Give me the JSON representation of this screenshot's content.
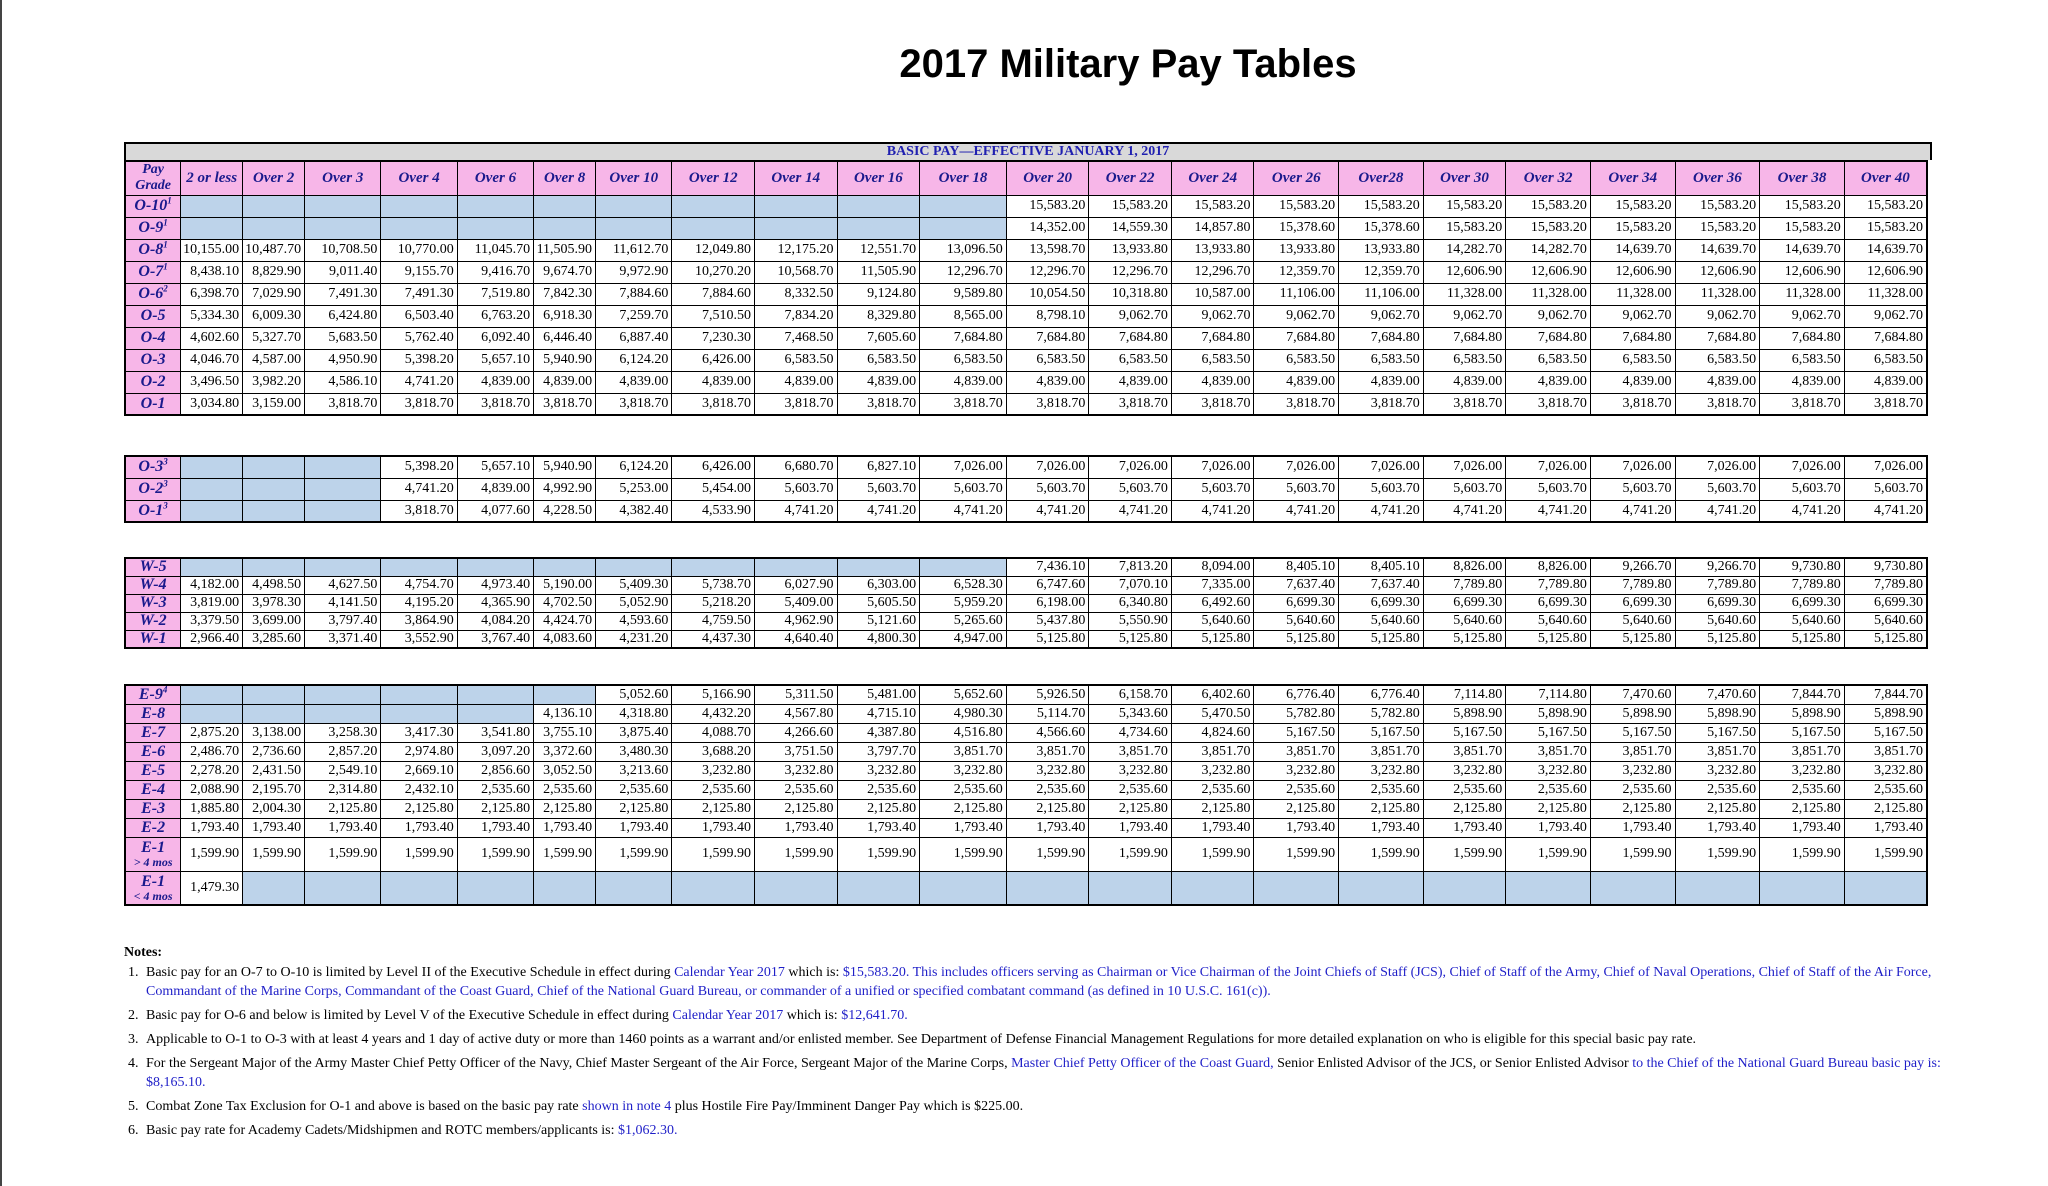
{
  "title": "2017 Military Pay Tables",
  "banner": "BASIC PAY—EFFECTIVE JANUARY 1, 2017",
  "headers": [
    "Pay Grade",
    "2 or less",
    "Over 2",
    "Over 3",
    "Over 4",
    "Over 6",
    "Over 8",
    "Over 10",
    "Over 12",
    "Over 14",
    "Over 16",
    "Over 18",
    "Over 20",
    "Over 22",
    "Over 24",
    "Over 26",
    "Over28",
    "Over 30",
    "Over 32",
    "Over 34",
    "Over 36",
    "Over 38",
    "Over 40"
  ],
  "colors": {
    "grade_fill": "#f7b6e8",
    "blank_fill": "#bdd3ea",
    "link": "#1f1fc8"
  },
  "commissioned": [
    {
      "grade": "O-10",
      "sup": "1",
      "values": [
        "",
        "",
        "",
        "",
        "",
        "",
        "",
        "",
        "",
        "",
        "",
        "15,583.20",
        "15,583.20",
        "15,583.20",
        "15,583.20",
        "15,583.20",
        "15,583.20",
        "15,583.20",
        "15,583.20",
        "15,583.20",
        "15,583.20",
        "15,583.20"
      ]
    },
    {
      "grade": "O-9",
      "sup": "1",
      "values": [
        "",
        "",
        "",
        "",
        "",
        "",
        "",
        "",
        "",
        "",
        "",
        "14,352.00",
        "14,559.30",
        "14,857.80",
        "15,378.60",
        "15,378.60",
        "15,583.20",
        "15,583.20",
        "15,583.20",
        "15,583.20",
        "15,583.20",
        "15,583.20"
      ]
    },
    {
      "grade": "O-8",
      "sup": "1",
      "values": [
        "10,155.00",
        "10,487.70",
        "10,708.50",
        "10,770.00",
        "11,045.70",
        "11,505.90",
        "11,612.70",
        "12,049.80",
        "12,175.20",
        "12,551.70",
        "13,096.50",
        "13,598.70",
        "13,933.80",
        "13,933.80",
        "13,933.80",
        "13,933.80",
        "14,282.70",
        "14,282.70",
        "14,639.70",
        "14,639.70",
        "14,639.70",
        "14,639.70"
      ]
    },
    {
      "grade": "O-7",
      "sup": "1",
      "values": [
        "8,438.10",
        "8,829.90",
        "9,011.40",
        "9,155.70",
        "9,416.70",
        "9,674.70",
        "9,972.90",
        "10,270.20",
        "10,568.70",
        "11,505.90",
        "12,296.70",
        "12,296.70",
        "12,296.70",
        "12,296.70",
        "12,359.70",
        "12,359.70",
        "12,606.90",
        "12,606.90",
        "12,606.90",
        "12,606.90",
        "12,606.90",
        "12,606.90"
      ]
    },
    {
      "grade": "O-6",
      "sup": "2",
      "values": [
        "6,398.70",
        "7,029.90",
        "7,491.30",
        "7,491.30",
        "7,519.80",
        "7,842.30",
        "7,884.60",
        "7,884.60",
        "8,332.50",
        "9,124.80",
        "9,589.80",
        "10,054.50",
        "10,318.80",
        "10,587.00",
        "11,106.00",
        "11,106.00",
        "11,328.00",
        "11,328.00",
        "11,328.00",
        "11,328.00",
        "11,328.00",
        "11,328.00"
      ]
    },
    {
      "grade": "O-5",
      "sup": "",
      "values": [
        "5,334.30",
        "6,009.30",
        "6,424.80",
        "6,503.40",
        "6,763.20",
        "6,918.30",
        "7,259.70",
        "7,510.50",
        "7,834.20",
        "8,329.80",
        "8,565.00",
        "8,798.10",
        "9,062.70",
        "9,062.70",
        "9,062.70",
        "9,062.70",
        "9,062.70",
        "9,062.70",
        "9,062.70",
        "9,062.70",
        "9,062.70",
        "9,062.70"
      ]
    },
    {
      "grade": "O-4",
      "sup": "",
      "values": [
        "4,602.60",
        "5,327.70",
        "5,683.50",
        "5,762.40",
        "6,092.40",
        "6,446.40",
        "6,887.40",
        "7,230.30",
        "7,468.50",
        "7,605.60",
        "7,684.80",
        "7,684.80",
        "7,684.80",
        "7,684.80",
        "7,684.80",
        "7,684.80",
        "7,684.80",
        "7,684.80",
        "7,684.80",
        "7,684.80",
        "7,684.80",
        "7,684.80"
      ]
    },
    {
      "grade": "O-3",
      "sup": "",
      "values": [
        "4,046.70",
        "4,587.00",
        "4,950.90",
        "5,398.20",
        "5,657.10",
        "5,940.90",
        "6,124.20",
        "6,426.00",
        "6,583.50",
        "6,583.50",
        "6,583.50",
        "6,583.50",
        "6,583.50",
        "6,583.50",
        "6,583.50",
        "6,583.50",
        "6,583.50",
        "6,583.50",
        "6,583.50",
        "6,583.50",
        "6,583.50",
        "6,583.50"
      ]
    },
    {
      "grade": "O-2",
      "sup": "",
      "values": [
        "3,496.50",
        "3,982.20",
        "4,586.10",
        "4,741.20",
        "4,839.00",
        "4,839.00",
        "4,839.00",
        "4,839.00",
        "4,839.00",
        "4,839.00",
        "4,839.00",
        "4,839.00",
        "4,839.00",
        "4,839.00",
        "4,839.00",
        "4,839.00",
        "4,839.00",
        "4,839.00",
        "4,839.00",
        "4,839.00",
        "4,839.00",
        "4,839.00"
      ]
    },
    {
      "grade": "O-1",
      "sup": "",
      "values": [
        "3,034.80",
        "3,159.00",
        "3,818.70",
        "3,818.70",
        "3,818.70",
        "3,818.70",
        "3,818.70",
        "3,818.70",
        "3,818.70",
        "3,818.70",
        "3,818.70",
        "3,818.70",
        "3,818.70",
        "3,818.70",
        "3,818.70",
        "3,818.70",
        "3,818.70",
        "3,818.70",
        "3,818.70",
        "3,818.70",
        "3,818.70",
        "3,818.70"
      ]
    }
  ],
  "prior_enlisted": [
    {
      "grade": "O-3",
      "sup": "3",
      "values": [
        "",
        "",
        "",
        "5,398.20",
        "5,657.10",
        "5,940.90",
        "6,124.20",
        "6,426.00",
        "6,680.70",
        "6,827.10",
        "7,026.00",
        "7,026.00",
        "7,026.00",
        "7,026.00",
        "7,026.00",
        "7,026.00",
        "7,026.00",
        "7,026.00",
        "7,026.00",
        "7,026.00",
        "7,026.00",
        "7,026.00"
      ]
    },
    {
      "grade": "O-2",
      "sup": "3",
      "values": [
        "",
        "",
        "",
        "4,741.20",
        "4,839.00",
        "4,992.90",
        "5,253.00",
        "5,454.00",
        "5,603.70",
        "5,603.70",
        "5,603.70",
        "5,603.70",
        "5,603.70",
        "5,603.70",
        "5,603.70",
        "5,603.70",
        "5,603.70",
        "5,603.70",
        "5,603.70",
        "5,603.70",
        "5,603.70",
        "5,603.70"
      ]
    },
    {
      "grade": "O-1",
      "sup": "3",
      "values": [
        "",
        "",
        "",
        "3,818.70",
        "4,077.60",
        "4,228.50",
        "4,382.40",
        "4,533.90",
        "4,741.20",
        "4,741.20",
        "4,741.20",
        "4,741.20",
        "4,741.20",
        "4,741.20",
        "4,741.20",
        "4,741.20",
        "4,741.20",
        "4,741.20",
        "4,741.20",
        "4,741.20",
        "4,741.20",
        "4,741.20"
      ]
    }
  ],
  "warrant": [
    {
      "grade": "W-5",
      "sup": "",
      "values": [
        "",
        "",
        "",
        "",
        "",
        "",
        "",
        "",
        "",
        "",
        "",
        "7,436.10",
        "7,813.20",
        "8,094.00",
        "8,405.10",
        "8,405.10",
        "8,826.00",
        "8,826.00",
        "9,266.70",
        "9,266.70",
        "9,730.80",
        "9,730.80"
      ]
    },
    {
      "grade": "W-4",
      "sup": "",
      "values": [
        "4,182.00",
        "4,498.50",
        "4,627.50",
        "4,754.70",
        "4,973.40",
        "5,190.00",
        "5,409.30",
        "5,738.70",
        "6,027.90",
        "6,303.00",
        "6,528.30",
        "6,747.60",
        "7,070.10",
        "7,335.00",
        "7,637.40",
        "7,637.40",
        "7,789.80",
        "7,789.80",
        "7,789.80",
        "7,789.80",
        "7,789.80",
        "7,789.80"
      ]
    },
    {
      "grade": "W-3",
      "sup": "",
      "values": [
        "3,819.00",
        "3,978.30",
        "4,141.50",
        "4,195.20",
        "4,365.90",
        "4,702.50",
        "5,052.90",
        "5,218.20",
        "5,409.00",
        "5,605.50",
        "5,959.20",
        "6,198.00",
        "6,340.80",
        "6,492.60",
        "6,699.30",
        "6,699.30",
        "6,699.30",
        "6,699.30",
        "6,699.30",
        "6,699.30",
        "6,699.30",
        "6,699.30"
      ]
    },
    {
      "grade": "W-2",
      "sup": "",
      "values": [
        "3,379.50",
        "3,699.00",
        "3,797.40",
        "3,864.90",
        "4,084.20",
        "4,424.70",
        "4,593.60",
        "4,759.50",
        "4,962.90",
        "5,121.60",
        "5,265.60",
        "5,437.80",
        "5,550.90",
        "5,640.60",
        "5,640.60",
        "5,640.60",
        "5,640.60",
        "5,640.60",
        "5,640.60",
        "5,640.60",
        "5,640.60",
        "5,640.60"
      ]
    },
    {
      "grade": "W-1",
      "sup": "",
      "values": [
        "2,966.40",
        "3,285.60",
        "3,371.40",
        "3,552.90",
        "3,767.40",
        "4,083.60",
        "4,231.20",
        "4,437.30",
        "4,640.40",
        "4,800.30",
        "4,947.00",
        "5,125.80",
        "5,125.80",
        "5,125.80",
        "5,125.80",
        "5,125.80",
        "5,125.80",
        "5,125.80",
        "5,125.80",
        "5,125.80",
        "5,125.80",
        "5,125.80"
      ]
    }
  ],
  "enlisted": [
    {
      "grade": "E-9",
      "sup": "4",
      "values": [
        "",
        "",
        "",
        "",
        "",
        "",
        "5,052.60",
        "5,166.90",
        "5,311.50",
        "5,481.00",
        "5,652.60",
        "5,926.50",
        "6,158.70",
        "6,402.60",
        "6,776.40",
        "6,776.40",
        "7,114.80",
        "7,114.80",
        "7,470.60",
        "7,470.60",
        "7,844.70",
        "7,844.70"
      ]
    },
    {
      "grade": "E-8",
      "sup": "",
      "values": [
        "",
        "",
        "",
        "",
        "",
        "4,136.10",
        "4,318.80",
        "4,432.20",
        "4,567.80",
        "4,715.10",
        "4,980.30",
        "5,114.70",
        "5,343.60",
        "5,470.50",
        "5,782.80",
        "5,782.80",
        "5,898.90",
        "5,898.90",
        "5,898.90",
        "5,898.90",
        "5,898.90",
        "5,898.90"
      ]
    },
    {
      "grade": "E-7",
      "sup": "",
      "values": [
        "2,875.20",
        "3,138.00",
        "3,258.30",
        "3,417.30",
        "3,541.80",
        "3,755.10",
        "3,875.40",
        "4,088.70",
        "4,266.60",
        "4,387.80",
        "4,516.80",
        "4,566.60",
        "4,734.60",
        "4,824.60",
        "5,167.50",
        "5,167.50",
        "5,167.50",
        "5,167.50",
        "5,167.50",
        "5,167.50",
        "5,167.50",
        "5,167.50"
      ]
    },
    {
      "grade": "E-6",
      "sup": "",
      "values": [
        "2,486.70",
        "2,736.60",
        "2,857.20",
        "2,974.80",
        "3,097.20",
        "3,372.60",
        "3,480.30",
        "3,688.20",
        "3,751.50",
        "3,797.70",
        "3,851.70",
        "3,851.70",
        "3,851.70",
        "3,851.70",
        "3,851.70",
        "3,851.70",
        "3,851.70",
        "3,851.70",
        "3,851.70",
        "3,851.70",
        "3,851.70",
        "3,851.70"
      ]
    },
    {
      "grade": "E-5",
      "sup": "",
      "values": [
        "2,278.20",
        "2,431.50",
        "2,549.10",
        "2,669.10",
        "2,856.60",
        "3,052.50",
        "3,213.60",
        "3,232.80",
        "3,232.80",
        "3,232.80",
        "3,232.80",
        "3,232.80",
        "3,232.80",
        "3,232.80",
        "3,232.80",
        "3,232.80",
        "3,232.80",
        "3,232.80",
        "3,232.80",
        "3,232.80",
        "3,232.80",
        "3,232.80"
      ]
    },
    {
      "grade": "E-4",
      "sup": "",
      "values": [
        "2,088.90",
        "2,195.70",
        "2,314.80",
        "2,432.10",
        "2,535.60",
        "2,535.60",
        "2,535.60",
        "2,535.60",
        "2,535.60",
        "2,535.60",
        "2,535.60",
        "2,535.60",
        "2,535.60",
        "2,535.60",
        "2,535.60",
        "2,535.60",
        "2,535.60",
        "2,535.60",
        "2,535.60",
        "2,535.60",
        "2,535.60",
        "2,535.60"
      ]
    },
    {
      "grade": "E-3",
      "sup": "",
      "values": [
        "1,885.80",
        "2,004.30",
        "2,125.80",
        "2,125.80",
        "2,125.80",
        "2,125.80",
        "2,125.80",
        "2,125.80",
        "2,125.80",
        "2,125.80",
        "2,125.80",
        "2,125.80",
        "2,125.80",
        "2,125.80",
        "2,125.80",
        "2,125.80",
        "2,125.80",
        "2,125.80",
        "2,125.80",
        "2,125.80",
        "2,125.80",
        "2,125.80"
      ]
    },
    {
      "grade": "E-2",
      "sup": "",
      "values": [
        "1,793.40",
        "1,793.40",
        "1,793.40",
        "1,793.40",
        "1,793.40",
        "1,793.40",
        "1,793.40",
        "1,793.40",
        "1,793.40",
        "1,793.40",
        "1,793.40",
        "1,793.40",
        "1,793.40",
        "1,793.40",
        "1,793.40",
        "1,793.40",
        "1,793.40",
        "1,793.40",
        "1,793.40",
        "1,793.40",
        "1,793.40",
        "1,793.40"
      ]
    },
    {
      "grade": "E-1",
      "sub": "> 4 mos",
      "sup": "",
      "values": [
        "1,599.90",
        "1,599.90",
        "1,599.90",
        "1,599.90",
        "1,599.90",
        "1,599.90",
        "1,599.90",
        "1,599.90",
        "1,599.90",
        "1,599.90",
        "1,599.90",
        "1,599.90",
        "1,599.90",
        "1,599.90",
        "1,599.90",
        "1,599.90",
        "1,599.90",
        "1,599.90",
        "1,599.90",
        "1,599.90",
        "1,599.90",
        "1,599.90"
      ]
    },
    {
      "grade": "E-1",
      "sub": "< 4 mos",
      "sup": "",
      "values": [
        "1,479.30",
        "",
        "",
        "",
        "",
        "",
        "",
        "",
        "",
        "",
        "",
        "",
        "",
        "",
        "",
        "",
        "",
        "",
        "",
        "",
        "",
        ""
      ]
    }
  ],
  "notes_heading": "Notes:",
  "notes": [
    {
      "num": "1.",
      "parts": [
        {
          "t": "Basic pay for an O-7 to O-10 is limited by Level II of the Executive Schedule in effect during ",
          "c": ""
        },
        {
          "t": "Calendar Year 2017",
          "c": "blu"
        },
        {
          "t": " which is: ",
          "c": ""
        },
        {
          "t": "$15,583.20.",
          "c": "blu"
        },
        {
          "t": "  This includes officers serving as Chairman or Vice Chairman of the Joint Chiefs of Staff (JCS), Chief of Staff of the Army, Chief of Naval Operations, Chief of Staff of the Air Force, Commandant of the Marine Corps, Commandant of the Coast Guard, Chief of the National Guard Bureau, or commander of a unified or specified combatant command (as defined in 10 U.S.C. 161(c)).",
          "c": "blu"
        }
      ]
    },
    {
      "num": "2.",
      "parts": [
        {
          "t": "Basic pay for O-6 and below is limited by Level V of the Executive Schedule in effect during ",
          "c": ""
        },
        {
          "t": "Calendar Year 2017",
          "c": "blu"
        },
        {
          "t": " which is: ",
          "c": ""
        },
        {
          "t": "$12,641.70.",
          "c": "blu"
        }
      ]
    },
    {
      "num": "3.",
      "parts": [
        {
          "t": "Applicable to O-1 to O-3 with at least 4 years and 1 day of active duty or more than 1460 points as a warrant and/or enlisted member. See Department of Defense Financial Management Regulations for more detailed explanation on who is eligible for this special basic pay rate.",
          "c": ""
        }
      ]
    },
    {
      "num": "4.",
      "parts": [
        {
          "t": "For the Sergeant Major of the Army Master Chief Petty Officer of the Navy, Chief Master Sergeant of the Air Force, Sergeant Major of the Marine Corps, ",
          "c": ""
        },
        {
          "t": "Master Chief Petty Officer of the Coast Guard,",
          "c": "blu"
        },
        {
          "t": " Senior Enlisted Advisor of the JCS, or Senior Enlisted Advisor ",
          "c": ""
        },
        {
          "t": "to the Chief of the National Guard Bureau basic pay is:  $8,165.10.",
          "c": "blu"
        }
      ]
    },
    {
      "num": "5.",
      "parts": [
        {
          "t": "Combat Zone Tax Exclusion for O-1 and above is based on the basic pay rate ",
          "c": ""
        },
        {
          "t": "shown in note 4",
          "c": "blu"
        },
        {
          "t": " plus Hostile Fire Pay/Imminent Danger Pay which is $225.00.",
          "c": ""
        }
      ]
    },
    {
      "num": "6.",
      "parts": [
        {
          "t": "Basic pay rate for Academy Cadets/Midshipmen and ROTC members/applicants is: ",
          "c": ""
        },
        {
          "t": "$1,062.30.",
          "c": "blu"
        }
      ]
    }
  ]
}
